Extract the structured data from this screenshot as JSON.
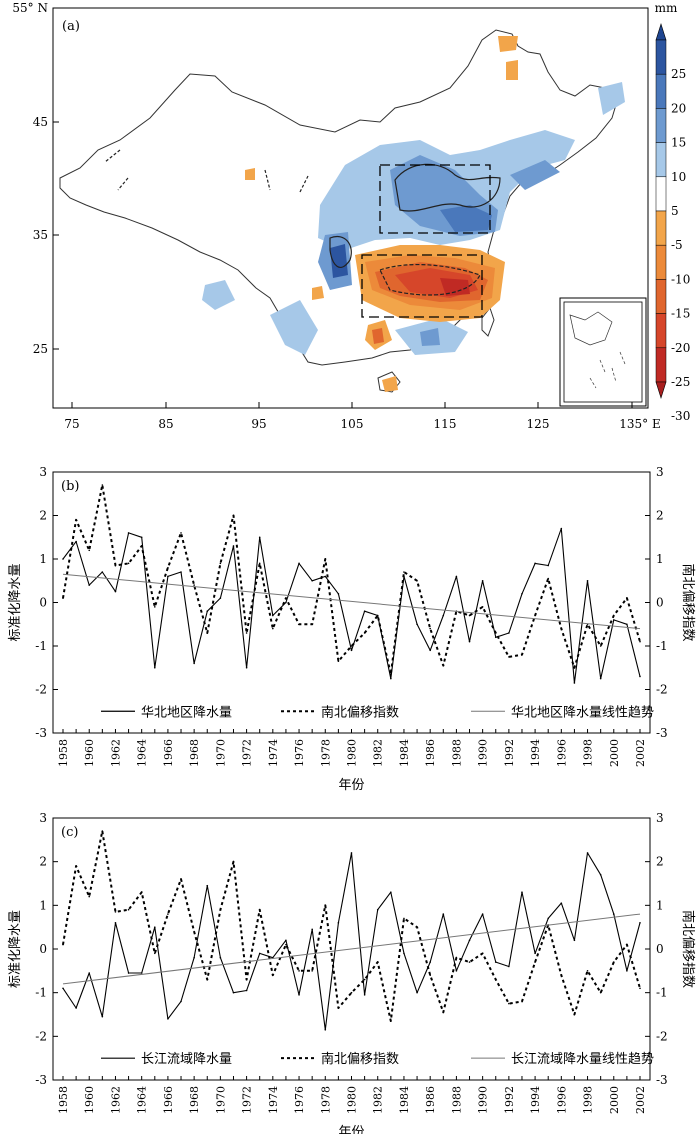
{
  "map": {
    "label": "(a)",
    "unit": "mm",
    "lat_labels": [
      "55° N",
      "45",
      "35",
      "25"
    ],
    "lon_labels": [
      "75",
      "85",
      "95",
      "105",
      "115",
      "125",
      "135° E"
    ],
    "colorbar_levels": [
      "25",
      "20",
      "15",
      "10",
      "5",
      "-5",
      "-10",
      "-15",
      "-20",
      "-25",
      "-30"
    ],
    "colorbar_colors": [
      "#2c55a0",
      "#4a78bb",
      "#6e9ad0",
      "#a6c8e8",
      "#ffffff",
      "#f2a54a",
      "#ec8a3a",
      "#e0662e",
      "#d6462a",
      "#c02a24"
    ]
  },
  "chart_data": [
    {
      "type": "line",
      "panel": "(b)",
      "xlabel": "年份",
      "ylabel": "标准化降水量",
      "y2label": "南北偏移指数",
      "ylim": [
        -3,
        3
      ],
      "y2lim": [
        -3,
        3
      ],
      "x_ticks": [
        1958,
        1960,
        1962,
        1964,
        1966,
        1968,
        1970,
        1972,
        1974,
        1976,
        1978,
        1980,
        1982,
        1984,
        1986,
        1988,
        1990,
        1992,
        1994,
        1996,
        1998,
        2000,
        2002
      ],
      "y_ticks": [
        -3,
        -2,
        -1,
        0,
        1,
        2,
        3
      ],
      "x": [
        1958,
        1959,
        1960,
        1961,
        1962,
        1963,
        1964,
        1965,
        1966,
        1967,
        1968,
        1969,
        1970,
        1971,
        1972,
        1973,
        1974,
        1975,
        1976,
        1977,
        1978,
        1979,
        1980,
        1981,
        1982,
        1983,
        1984,
        1985,
        1986,
        1987,
        1988,
        1989,
        1990,
        1991,
        1992,
        1993,
        1994,
        1995,
        1996,
        1997,
        1998,
        1999,
        2000,
        2001,
        2002
      ],
      "series": [
        {
          "name": "华北地区降水量",
          "style": "solid",
          "values": [
            1.0,
            1.4,
            0.4,
            0.7,
            0.25,
            1.6,
            1.5,
            -1.5,
            0.6,
            0.7,
            -1.4,
            -0.2,
            0.1,
            1.3,
            -1.5,
            1.5,
            -0.3,
            0.0,
            0.9,
            0.5,
            0.6,
            0.2,
            -1.1,
            -0.2,
            -0.3,
            -1.75,
            0.6,
            -0.5,
            -1.1,
            -0.3,
            0.6,
            -0.9,
            0.5,
            -0.8,
            -0.7,
            0.2,
            0.9,
            0.85,
            1.7,
            -1.85,
            0.5,
            -1.75,
            -0.4,
            -0.5,
            -1.7
          ]
        },
        {
          "name": "南北偏移指数",
          "style": "dotted",
          "values": [
            0.1,
            1.9,
            1.2,
            2.7,
            0.85,
            0.9,
            1.3,
            -0.1,
            0.8,
            1.6,
            0.4,
            -0.7,
            0.9,
            2.0,
            -0.7,
            0.9,
            -0.6,
            0.1,
            -0.5,
            -0.5,
            1.0,
            -1.35,
            -1.0,
            -0.7,
            -0.3,
            -1.65,
            0.7,
            0.5,
            -0.6,
            -1.45,
            -0.2,
            -0.3,
            -0.1,
            -0.7,
            -1.25,
            -1.2,
            -0.3,
            0.55,
            -0.6,
            -1.5,
            -0.5,
            -1.0,
            -0.3,
            0.1,
            -0.9
          ]
        },
        {
          "name": "华北地区降水量线性趋势",
          "style": "thin",
          "trend": [
            0.65,
            -0.6
          ]
        }
      ]
    },
    {
      "type": "line",
      "panel": "(c)",
      "xlabel": "年份",
      "ylabel": "标准化降水量",
      "y2label": "南北偏移指数",
      "ylim": [
        -3,
        3
      ],
      "y2lim": [
        -3,
        3
      ],
      "x_ticks": [
        1958,
        1960,
        1962,
        1964,
        1966,
        1968,
        1970,
        1972,
        1974,
        1976,
        1978,
        1980,
        1982,
        1984,
        1986,
        1988,
        1990,
        1992,
        1994,
        1996,
        1998,
        2000,
        2002
      ],
      "y_ticks": [
        -3,
        -2,
        -1,
        0,
        1,
        2,
        3
      ],
      "x": [
        1958,
        1959,
        1960,
        1961,
        1962,
        1963,
        1964,
        1965,
        1966,
        1967,
        1968,
        1969,
        1970,
        1971,
        1972,
        1973,
        1974,
        1975,
        1976,
        1977,
        1978,
        1979,
        1980,
        1981,
        1982,
        1983,
        1984,
        1985,
        1986,
        1987,
        1988,
        1989,
        1990,
        1991,
        1992,
        1993,
        1994,
        1995,
        1996,
        1997,
        1998,
        1999,
        2000,
        2001,
        2002
      ],
      "series": [
        {
          "name": "长江流域降水量",
          "style": "solid",
          "values": [
            -0.9,
            -1.35,
            -0.55,
            -1.55,
            0.6,
            -0.55,
            -0.55,
            0.5,
            -1.6,
            -1.2,
            -0.2,
            1.45,
            -0.2,
            -1.0,
            -0.95,
            -0.1,
            -0.2,
            0.2,
            -1.05,
            0.45,
            -1.85,
            0.6,
            2.2,
            -1.05,
            0.9,
            1.3,
            -0.1,
            -1.0,
            -0.3,
            0.8,
            -0.5,
            0.2,
            0.8,
            -0.3,
            -0.4,
            1.3,
            -0.1,
            0.7,
            1.05,
            0.2,
            2.2,
            1.7,
            0.8,
            -0.5,
            0.6
          ]
        },
        {
          "name": "南北偏移指数",
          "style": "dotted",
          "values": [
            0.1,
            1.9,
            1.2,
            2.7,
            0.85,
            0.9,
            1.3,
            -0.1,
            0.8,
            1.6,
            0.4,
            -0.7,
            0.9,
            2.0,
            -0.7,
            0.9,
            -0.6,
            0.1,
            -0.5,
            -0.5,
            1.0,
            -1.35,
            -1.0,
            -0.7,
            -0.3,
            -1.65,
            0.7,
            0.5,
            -0.6,
            -1.45,
            -0.2,
            -0.3,
            -0.1,
            -0.7,
            -1.25,
            -1.2,
            -0.3,
            0.55,
            -0.6,
            -1.5,
            -0.5,
            -1.0,
            -0.3,
            0.1,
            -0.9
          ]
        },
        {
          "name": "长江流域降水量线性趋势",
          "style": "thin",
          "trend": [
            -0.8,
            0.8
          ]
        }
      ]
    }
  ]
}
